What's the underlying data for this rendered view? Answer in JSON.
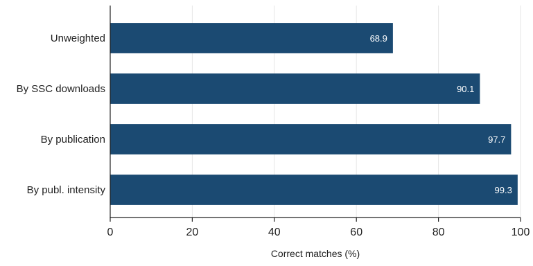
{
  "chart_data": {
    "type": "bar",
    "orientation": "horizontal",
    "categories": [
      "Unweighted",
      "By SSC downloads",
      "By publication",
      "By publ. intensity"
    ],
    "values": [
      68.9,
      90.1,
      97.7,
      99.3
    ],
    "value_labels": [
      "68.9",
      "90.1",
      "97.7",
      "99.3"
    ],
    "title": "",
    "xlabel": "Correct matches (%)",
    "ylabel": "",
    "xlim": [
      0,
      100
    ],
    "xticks": [
      0,
      20,
      40,
      60,
      80,
      100
    ],
    "xtick_labels": [
      "0",
      "20",
      "40",
      "60",
      "80",
      "100"
    ],
    "grid": "vertical",
    "legend": "none",
    "bar_color": "#1b4a72",
    "label_color": "#ffffff",
    "grid_color": "#e6e6e6"
  }
}
